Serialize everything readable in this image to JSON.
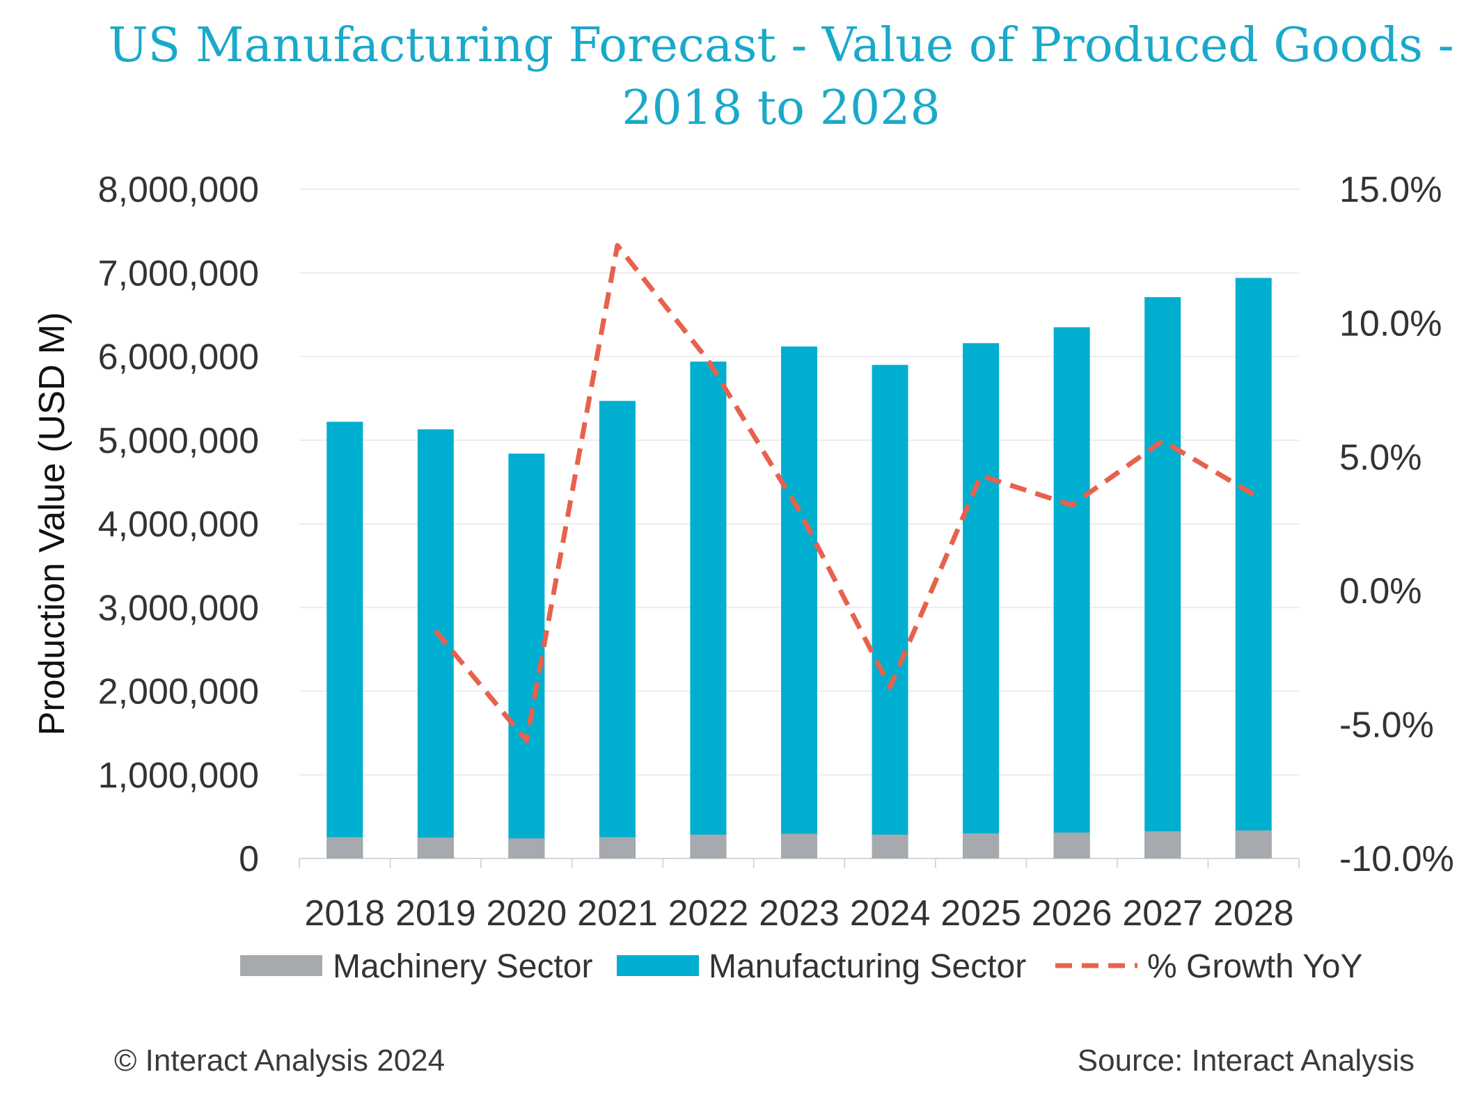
{
  "chart_data": {
    "type": "bar",
    "title_line1": "US Manufacturing Forecast - Value of Produced Goods -",
    "title_line2": "2018 to 2028",
    "ylabel": "Production Value (USD M)",
    "xlabel": "",
    "categories": [
      "2018",
      "2019",
      "2020",
      "2021",
      "2022",
      "2023",
      "2024",
      "2025",
      "2026",
      "2027",
      "2028"
    ],
    "series": [
      {
        "name": "Machinery Sector",
        "type": "bar",
        "axis": "left",
        "color": "#a6a9ad",
        "values": [
          255000,
          250000,
          240000,
          255000,
          285000,
          295000,
          285000,
          300000,
          310000,
          325000,
          335000
        ]
      },
      {
        "name": "Manufacturing Sector",
        "type": "bar",
        "axis": "left",
        "color": "#00afd0",
        "values": [
          5220000,
          5130000,
          4840000,
          5470000,
          5940000,
          6120000,
          5900000,
          6160000,
          6350000,
          6710000,
          6940000
        ]
      },
      {
        "name": "% Growth YoY",
        "type": "line",
        "axis": "right",
        "style": "dashed",
        "color": "#e8614c",
        "values": [
          null,
          -1.5,
          -5.6,
          12.9,
          8.6,
          3.0,
          -3.6,
          4.3,
          3.2,
          5.6,
          3.6
        ]
      }
    ],
    "ylim": [
      0,
      8000000
    ],
    "yticks": [
      "0",
      "1,000,000",
      "2,000,000",
      "3,000,000",
      "4,000,000",
      "5,000,000",
      "6,000,000",
      "7,000,000",
      "8,000,000"
    ],
    "y2lim": [
      -10,
      15
    ],
    "y2ticks": [
      "-10.0%",
      "-5.0%",
      "0.0%",
      "5.0%",
      "10.0%",
      "15.0%"
    ],
    "grid": true,
    "legend_position": "bottom"
  },
  "footer": {
    "copyright": "© Interact Analysis 2024",
    "source": "Source: Interact Analysis"
  }
}
